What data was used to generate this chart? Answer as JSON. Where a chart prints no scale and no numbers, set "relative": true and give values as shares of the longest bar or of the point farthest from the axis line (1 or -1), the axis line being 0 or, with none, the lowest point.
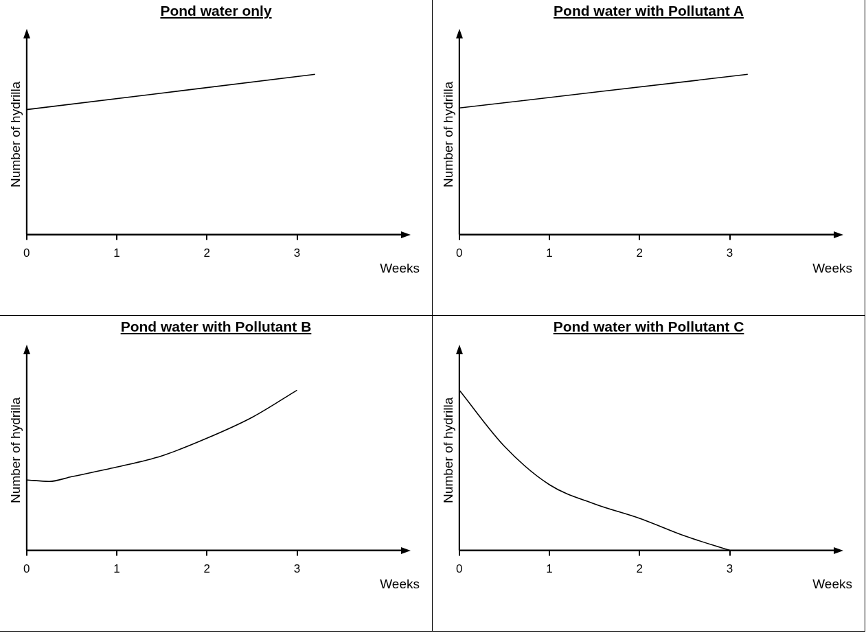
{
  "chart_data": [
    {
      "type": "line",
      "title": "Pond water only",
      "xlabel": "Weeks",
      "ylabel": "Number of hydrilla",
      "relative": true,
      "xlim": [
        0,
        4.2
      ],
      "xticks": [
        0,
        1,
        2,
        3
      ],
      "marker": "none",
      "color": "#000000",
      "x": [
        0,
        3.2
      ],
      "values": [
        0.78,
        1
      ]
    },
    {
      "type": "line",
      "title": "Pond water with Pollutant A",
      "xlabel": "Weeks",
      "ylabel": "Number of hydrilla",
      "relative": true,
      "xlim": [
        0,
        4.2
      ],
      "xticks": [
        0,
        1,
        2,
        3
      ],
      "marker": "none",
      "color": "#000000",
      "x": [
        0,
        3.2
      ],
      "values": [
        0.79,
        1
      ]
    },
    {
      "type": "line",
      "title": "Pond water with Pollutant B",
      "xlabel": "Weeks",
      "ylabel": "Number of hydrilla",
      "relative": true,
      "xlim": [
        0,
        4.2
      ],
      "xticks": [
        0,
        1,
        2,
        3
      ],
      "marker": "none",
      "color": "#000000",
      "x": [
        0,
        0.25,
        0.5,
        1,
        1.5,
        2,
        2.5,
        3
      ],
      "values": [
        0.44,
        0.43,
        0.46,
        0.52,
        0.59,
        0.7,
        0.83,
        1
      ]
    },
    {
      "type": "line",
      "title": "Pond water with Pollutant C",
      "xlabel": "Weeks",
      "ylabel": "Number of hydrilla",
      "relative": true,
      "xlim": [
        0,
        4.2
      ],
      "xticks": [
        0,
        1,
        2,
        3
      ],
      "marker": "none",
      "color": "#000000",
      "x": [
        0,
        0.5,
        1,
        1.5,
        2,
        2.5,
        3
      ],
      "values": [
        1,
        0.65,
        0.41,
        0.29,
        0.2,
        0.09,
        0
      ]
    }
  ]
}
